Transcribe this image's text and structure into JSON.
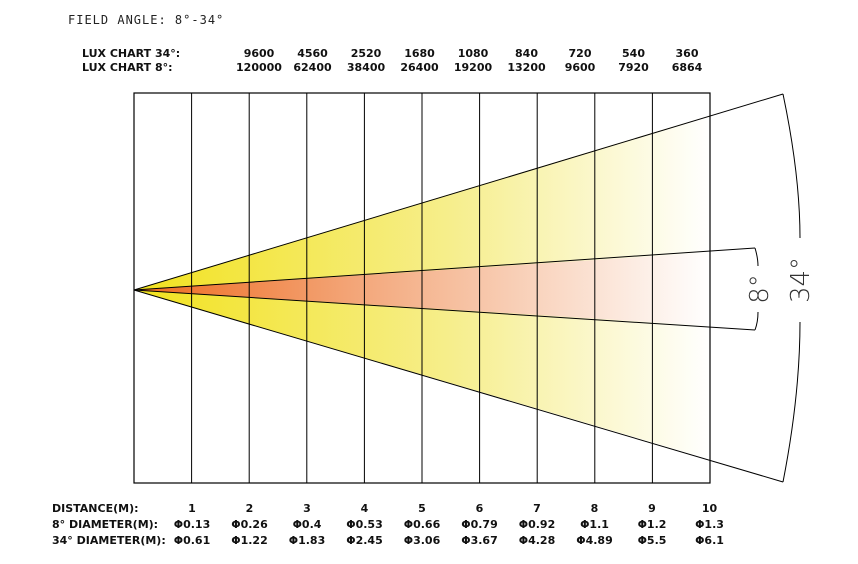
{
  "title": "FIELD ANGLE: 8°-34°",
  "lux_34": {
    "label": "LUX CHART 34°:",
    "values": [
      "9600",
      "4560",
      "2520",
      "1680",
      "1080",
      "840",
      "720",
      "540",
      "360"
    ]
  },
  "lux_8": {
    "label": "LUX CHART 8°:",
    "values": [
      "120000",
      "62400",
      "38400",
      "26400",
      "19200",
      "13200",
      "9600",
      "7920",
      "6864"
    ]
  },
  "distance": {
    "label": "DISTANCE(M):",
    "values": [
      "1",
      "2",
      "3",
      "4",
      "5",
      "6",
      "7",
      "8",
      "9",
      "10"
    ]
  },
  "diameter_8": {
    "label": "8° DIAMETER(M):",
    "values": [
      "Φ0.13",
      "Φ0.26",
      "Φ0.4",
      "Φ0.53",
      "Φ0.66",
      "Φ0.79",
      "Φ0.92",
      "Φ1.1",
      "Φ1.2",
      "Φ1.3"
    ]
  },
  "diameter_34": {
    "label": "34° DIAMETER(M):",
    "values": [
      "Φ0.61",
      "Φ1.22",
      "Φ1.83",
      "Φ2.45",
      "Φ3.06",
      "Φ3.67",
      "Φ4.28",
      "Φ4.89",
      "Φ5.5",
      "Φ6.1"
    ]
  },
  "angles": {
    "wide": "34°",
    "narrow": "8°"
  },
  "colors": {
    "wide_beam_start": "#f2e21e",
    "wide_beam_end": "#ffffff",
    "narrow_beam_start": "#ee6a1e",
    "narrow_beam_end": "#ffffff",
    "lines": "#000000"
  }
}
